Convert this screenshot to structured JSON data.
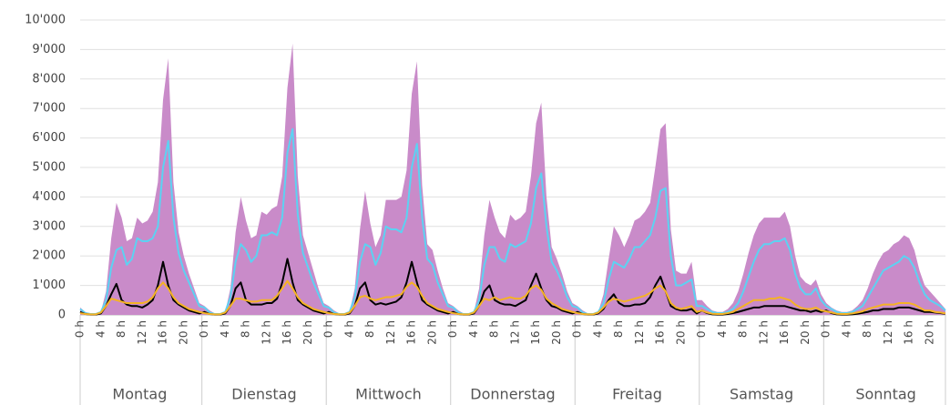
{
  "chart_data": {
    "type": "area_line",
    "categories": [
      "0 h",
      null,
      null,
      null,
      "4 h",
      null,
      null,
      null,
      "8 h",
      null,
      null,
      null,
      "12 h",
      null,
      null,
      null,
      "16 h",
      null,
      null,
      null,
      "20 h",
      null,
      null,
      null,
      "0 h",
      null,
      null,
      null,
      "4 h",
      null,
      null,
      null,
      "8 h",
      null,
      null,
      null,
      "12 h",
      null,
      null,
      null,
      "16 h",
      null,
      null,
      null,
      "20 h",
      null,
      null,
      null,
      "0 h",
      null,
      null,
      null,
      "4 h",
      null,
      null,
      null,
      "8 h",
      null,
      null,
      null,
      "12 h",
      null,
      null,
      null,
      "16 h",
      null,
      null,
      null,
      "20 h",
      null,
      null,
      null,
      "0 h",
      null,
      null,
      null,
      "4 h",
      null,
      null,
      null,
      "8 h",
      null,
      null,
      null,
      "12 h",
      null,
      null,
      null,
      "16 h",
      null,
      null,
      null,
      "20 h",
      null,
      null,
      null,
      "0 h",
      null,
      null,
      null,
      "4 h",
      null,
      null,
      null,
      "8 h",
      null,
      null,
      null,
      "12 h",
      null,
      null,
      null,
      "16 h",
      null,
      null,
      null,
      "20 h",
      null,
      null,
      null,
      "0 h",
      null,
      null,
      null,
      "4 h",
      null,
      null,
      null,
      "8 h",
      null,
      null,
      null,
      "12 h",
      null,
      null,
      null,
      "16 h",
      null,
      null,
      null,
      "20 h",
      null,
      null,
      null,
      "0 h",
      null,
      null,
      null,
      "4 h",
      null,
      null,
      null,
      "8 h",
      null,
      null,
      null,
      "12 h",
      null,
      null,
      null,
      "16 h",
      null,
      null,
      null,
      "20 h",
      null,
      null,
      null
    ],
    "groups": [
      "Montag",
      "Dienstag",
      "Mittwoch",
      "Donnerstag",
      "Freitag",
      "Samstag",
      "Sonntag"
    ],
    "series": [
      {
        "kind": "area",
        "color": "#c98bc9",
        "values": [
          250,
          100,
          50,
          50,
          100,
          800,
          2600,
          3800,
          3300,
          2500,
          2600,
          3300,
          3100,
          3200,
          3500,
          4500,
          7300,
          8700,
          4500,
          2800,
          2000,
          1400,
          900,
          400,
          300,
          150,
          50,
          50,
          100,
          900,
          2800,
          4000,
          3200,
          2600,
          2700,
          3500,
          3400,
          3600,
          3700,
          4700,
          7700,
          9200,
          4700,
          2700,
          2100,
          1500,
          900,
          400,
          300,
          150,
          50,
          50,
          100,
          900,
          2900,
          4200,
          3100,
          2300,
          2700,
          3900,
          3900,
          3900,
          4000,
          4900,
          7500,
          8600,
          4400,
          2400,
          2200,
          1500,
          900,
          400,
          300,
          150,
          50,
          50,
          100,
          900,
          2700,
          3900,
          3300,
          2800,
          2600,
          3400,
          3200,
          3300,
          3500,
          4700,
          6500,
          7200,
          4000,
          2300,
          1900,
          1400,
          800,
          400,
          300,
          150,
          50,
          50,
          100,
          700,
          1900,
          3000,
          2700,
          2300,
          2700,
          3200,
          3300,
          3500,
          3800,
          5000,
          6300,
          6500,
          2900,
          1500,
          1400,
          1400,
          1800,
          500,
          500,
          300,
          150,
          100,
          100,
          200,
          400,
          800,
          1400,
          2100,
          2700,
          3100,
          3300,
          3300,
          3300,
          3300,
          3500,
          3000,
          2000,
          1300,
          1100,
          1000,
          1200,
          700,
          400,
          250,
          150,
          100,
          100,
          150,
          300,
          500,
          900,
          1400,
          1800,
          2100,
          2200,
          2400,
          2500,
          2700,
          2600,
          2200,
          1500,
          1000,
          800,
          600,
          400,
          200
        ]
      },
      {
        "kind": "line",
        "color": "#5cd2f2",
        "values": [
          200,
          60,
          30,
          30,
          100,
          500,
          1600,
          2200,
          2300,
          1700,
          1900,
          2600,
          2500,
          2500,
          2600,
          3000,
          5000,
          5900,
          3300,
          2100,
          1500,
          1100,
          700,
          300,
          250,
          80,
          30,
          30,
          100,
          600,
          1800,
          2400,
          2200,
          1800,
          2000,
          2700,
          2700,
          2800,
          2700,
          3300,
          5500,
          6300,
          3400,
          2100,
          1600,
          1100,
          700,
          300,
          250,
          80,
          30,
          30,
          100,
          600,
          1800,
          2400,
          2300,
          1700,
          2100,
          3000,
          2900,
          2900,
          2800,
          3300,
          5000,
          5800,
          3300,
          1900,
          1700,
          1100,
          700,
          300,
          250,
          80,
          30,
          30,
          100,
          500,
          1700,
          2300,
          2300,
          1900,
          1800,
          2400,
          2300,
          2400,
          2500,
          3100,
          4300,
          4800,
          3000,
          1800,
          1500,
          1100,
          600,
          300,
          250,
          80,
          30,
          30,
          100,
          400,
          1200,
          1800,
          1700,
          1600,
          1900,
          2300,
          2300,
          2500,
          2700,
          3300,
          4200,
          4300,
          2000,
          1000,
          1000,
          1100,
          1200,
          300,
          300,
          200,
          100,
          60,
          60,
          100,
          200,
          400,
          800,
          1300,
          1800,
          2200,
          2400,
          2400,
          2500,
          2500,
          2600,
          2200,
          1400,
          900,
          700,
          700,
          900,
          500,
          300,
          200,
          100,
          60,
          60,
          100,
          200,
          300,
          600,
          900,
          1200,
          1500,
          1600,
          1700,
          1800,
          2000,
          1900,
          1600,
          1100,
          700,
          500,
          400,
          300,
          150
        ]
      },
      {
        "kind": "line",
        "color": "#000000",
        "values": [
          100,
          30,
          10,
          10,
          50,
          300,
          700,
          1050,
          500,
          350,
          300,
          300,
          250,
          350,
          500,
          1000,
          1800,
          1000,
          500,
          350,
          250,
          150,
          100,
          50,
          100,
          30,
          10,
          10,
          50,
          300,
          900,
          1100,
          500,
          350,
          350,
          350,
          400,
          400,
          550,
          1100,
          1900,
          1100,
          500,
          350,
          250,
          150,
          100,
          50,
          100,
          30,
          10,
          10,
          50,
          300,
          900,
          1100,
          500,
          350,
          400,
          350,
          400,
          450,
          600,
          1100,
          1800,
          1100,
          500,
          350,
          250,
          150,
          100,
          50,
          100,
          30,
          10,
          10,
          50,
          300,
          800,
          1000,
          500,
          400,
          350,
          350,
          300,
          400,
          500,
          1000,
          1400,
          900,
          500,
          300,
          250,
          150,
          100,
          50,
          100,
          30,
          10,
          10,
          50,
          200,
          500,
          700,
          400,
          300,
          300,
          350,
          350,
          400,
          600,
          1000,
          1300,
          800,
          300,
          200,
          150,
          150,
          200,
          50,
          150,
          60,
          20,
          10,
          10,
          30,
          60,
          100,
          150,
          200,
          250,
          250,
          300,
          300,
          300,
          300,
          300,
          250,
          200,
          150,
          150,
          100,
          150,
          100,
          150,
          60,
          20,
          10,
          10,
          20,
          40,
          70,
          100,
          150,
          150,
          200,
          200,
          200,
          250,
          250,
          250,
          200,
          150,
          100,
          100,
          80,
          60,
          40
        ]
      },
      {
        "kind": "line",
        "color": "#f5b324",
        "values": [
          60,
          30,
          20,
          20,
          80,
          300,
          550,
          500,
          450,
          400,
          400,
          400,
          400,
          450,
          600,
          900,
          1100,
          900,
          600,
          400,
          300,
          200,
          150,
          100,
          60,
          30,
          20,
          20,
          80,
          300,
          550,
          550,
          500,
          450,
          450,
          500,
          500,
          500,
          650,
          900,
          1150,
          900,
          600,
          400,
          300,
          200,
          150,
          100,
          60,
          30,
          20,
          20,
          80,
          300,
          600,
          650,
          550,
          500,
          550,
          600,
          600,
          650,
          700,
          950,
          1100,
          950,
          650,
          400,
          300,
          200,
          150,
          100,
          60,
          30,
          20,
          20,
          80,
          300,
          550,
          500,
          600,
          500,
          550,
          600,
          550,
          550,
          650,
          900,
          1000,
          850,
          550,
          400,
          300,
          200,
          150,
          100,
          60,
          30,
          20,
          20,
          80,
          250,
          450,
          550,
          500,
          450,
          500,
          550,
          600,
          650,
          750,
          900,
          1000,
          800,
          400,
          250,
          200,
          250,
          300,
          100,
          150,
          80,
          40,
          30,
          30,
          60,
          100,
          200,
          300,
          400,
          500,
          500,
          500,
          550,
          550,
          600,
          550,
          500,
          350,
          250,
          200,
          200,
          250,
          150,
          120,
          80,
          40,
          30,
          30,
          50,
          80,
          120,
          200,
          250,
          300,
          350,
          350,
          350,
          400,
          400,
          400,
          350,
          250,
          150,
          150,
          100,
          80,
          50
        ]
      }
    ],
    "ylim": [
      0,
      10000
    ],
    "yticks": [
      0,
      {
        "value": 1000,
        "label": "1'000"
      },
      {
        "value": 2000,
        "label": "2'000"
      },
      {
        "value": 3000,
        "label": "3'000"
      },
      {
        "value": 4000,
        "label": "4'000"
      },
      {
        "value": 5000,
        "label": "5'000"
      },
      {
        "value": 6000,
        "label": "6'000"
      },
      {
        "value": 7000,
        "label": "7'000"
      },
      {
        "value": 8000,
        "label": "8'000"
      },
      {
        "value": 9000,
        "label": "9'000"
      },
      {
        "value": 10000,
        "label": "10'000"
      }
    ],
    "grid": true
  }
}
